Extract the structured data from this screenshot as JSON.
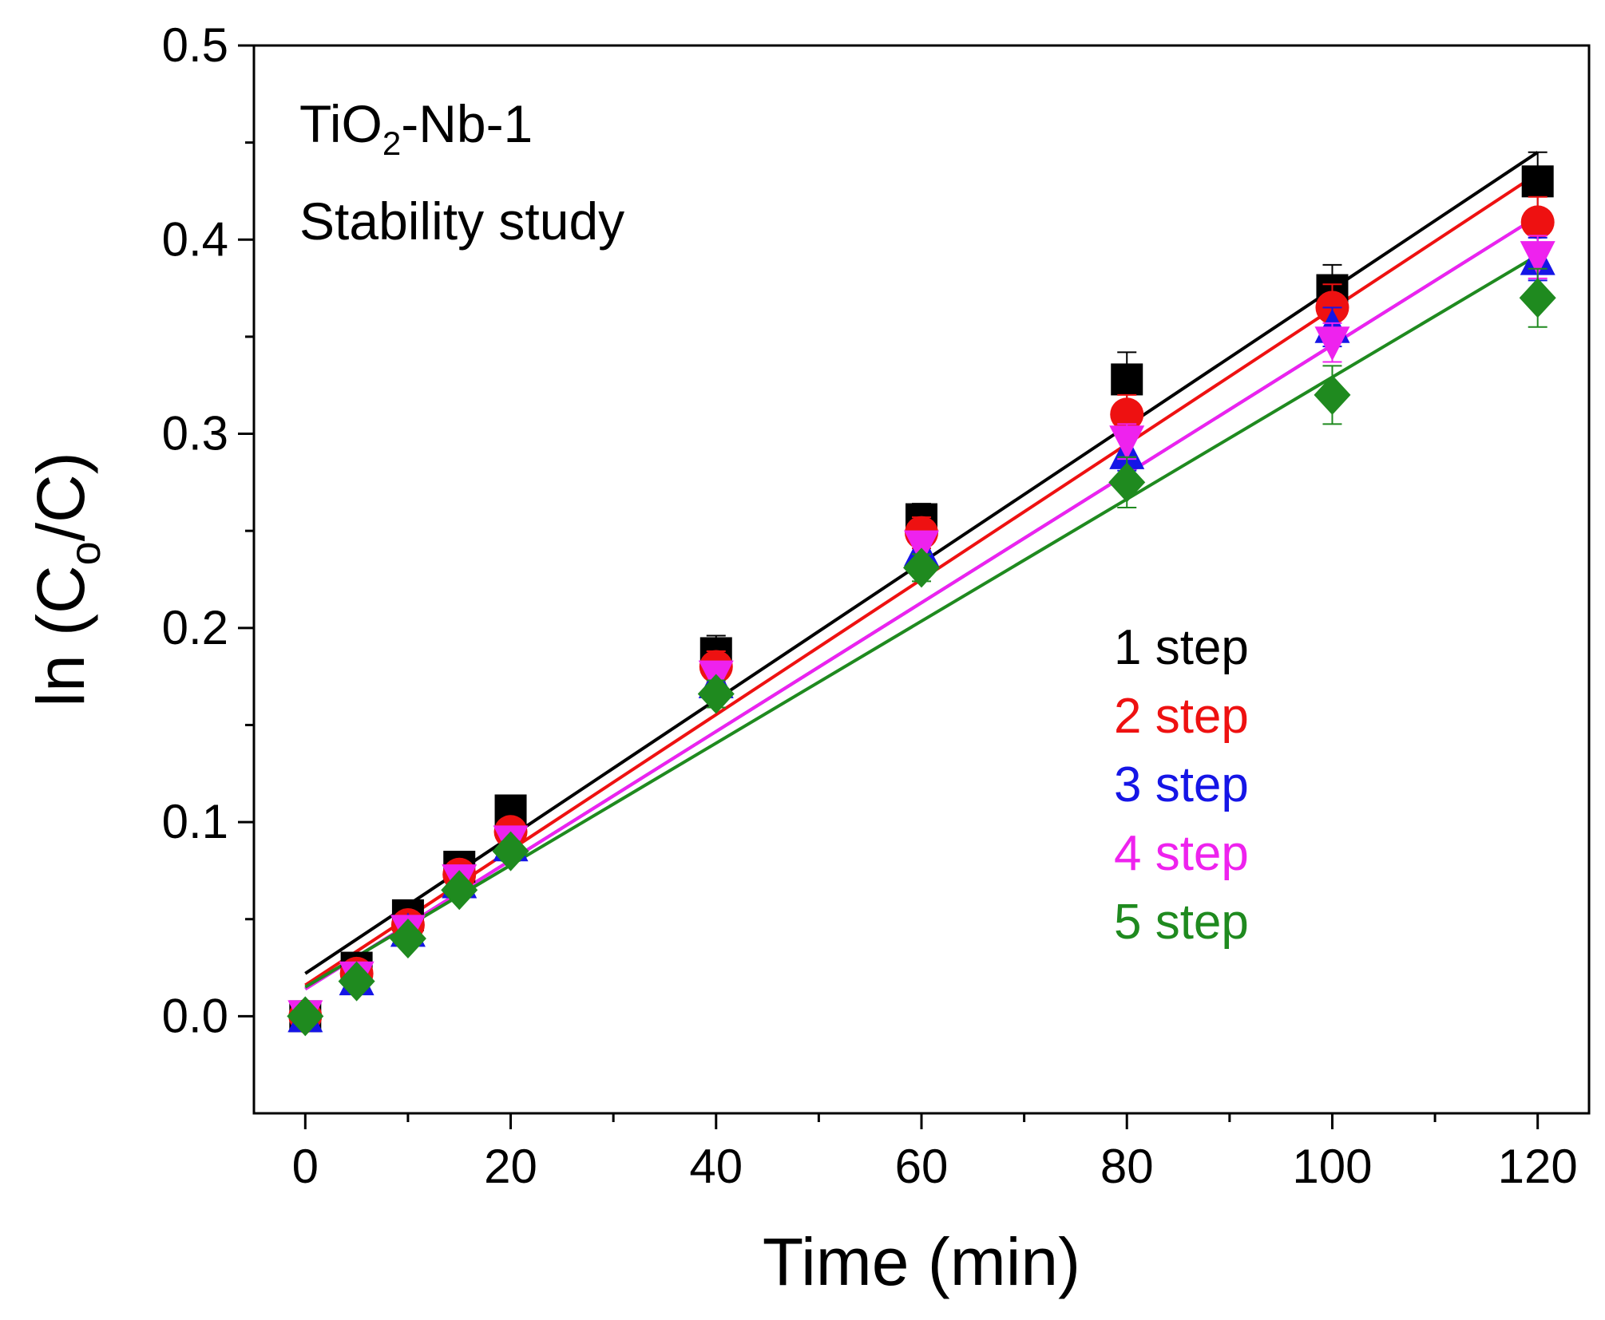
{
  "chart_data": {
    "type": "scatter",
    "title": "TiO2-Nb-1",
    "title_parts": {
      "base": "TiO",
      "sub": "2",
      "rest": "-Nb-1"
    },
    "subtitle": "Stability study",
    "xlabel": "Time (min)",
    "ylabel": "ln (Co/C)",
    "ylabel_parts": {
      "pre": "ln (C",
      "sub": "o",
      "post": "/C)"
    },
    "xlim": [
      -5,
      125
    ],
    "ylim": [
      -0.05,
      0.5
    ],
    "xticks": [
      0,
      20,
      40,
      60,
      80,
      100,
      120
    ],
    "xtick_labels": [
      "0",
      "20",
      "40",
      "60",
      "80",
      "100",
      "120"
    ],
    "xminor": [
      10,
      30,
      50,
      70,
      90,
      110
    ],
    "yticks": [
      0.0,
      0.1,
      0.2,
      0.3,
      0.4,
      0.5
    ],
    "ytick_labels": [
      "0.0",
      "0.1",
      "0.2",
      "0.3",
      "0.4",
      "0.5"
    ],
    "yminor": [
      0.05,
      0.15,
      0.25,
      0.35,
      0.45
    ],
    "grid": false,
    "legend_position": "center-right",
    "x": [
      0,
      5,
      10,
      15,
      20,
      40,
      60,
      80,
      100,
      120
    ],
    "series": [
      {
        "name": "1 step",
        "label": "1 step",
        "color": "#000000",
        "marker": "square",
        "values": [
          0.0,
          0.025,
          0.052,
          0.077,
          0.106,
          0.187,
          0.256,
          0.328,
          0.374,
          0.43
        ],
        "errors": [
          0.004,
          0.004,
          0.005,
          0.005,
          0.006,
          0.009,
          0.008,
          0.014,
          0.013,
          0.015
        ],
        "fit": [
          0.022,
          0.445
        ]
      },
      {
        "name": "2 step",
        "label": "2 step",
        "color": "#ee1111",
        "marker": "circle",
        "values": [
          0.0,
          0.022,
          0.047,
          0.073,
          0.095,
          0.18,
          0.249,
          0.31,
          0.365,
          0.409
        ],
        "errors": [
          0.003,
          0.004,
          0.004,
          0.004,
          0.005,
          0.008,
          0.008,
          0.01,
          0.012,
          0.013
        ],
        "fit": [
          0.016,
          0.434
        ]
      },
      {
        "name": "3 step",
        "label": "3 step",
        "color": "#1515e6",
        "marker": "triangle-up",
        "values": [
          0.0,
          0.019,
          0.044,
          0.069,
          0.088,
          0.172,
          0.24,
          0.29,
          0.355,
          0.39
        ],
        "errors": [
          0.003,
          0.003,
          0.004,
          0.004,
          0.005,
          0.007,
          0.007,
          0.009,
          0.01,
          0.011
        ],
        "fit": [
          0.014,
          0.412
        ]
      },
      {
        "name": "4 step",
        "label": "4 step",
        "color": "#ee22ee",
        "marker": "triangle-down",
        "values": [
          0.0,
          0.02,
          0.044,
          0.07,
          0.09,
          0.175,
          0.242,
          0.296,
          0.347,
          0.391
        ],
        "errors": [
          0.003,
          0.003,
          0.004,
          0.004,
          0.005,
          0.007,
          0.007,
          0.009,
          0.01,
          0.011
        ],
        "fit": [
          0.014,
          0.412
        ]
      },
      {
        "name": "5 step",
        "label": "5 step",
        "color": "#1f8a1f",
        "marker": "diamond",
        "values": [
          0.0,
          0.018,
          0.04,
          0.065,
          0.085,
          0.166,
          0.231,
          0.275,
          0.32,
          0.37
        ],
        "errors": [
          0.003,
          0.003,
          0.004,
          0.004,
          0.005,
          0.007,
          0.007,
          0.013,
          0.015,
          0.015
        ],
        "fit": [
          0.015,
          0.392
        ]
      }
    ]
  }
}
